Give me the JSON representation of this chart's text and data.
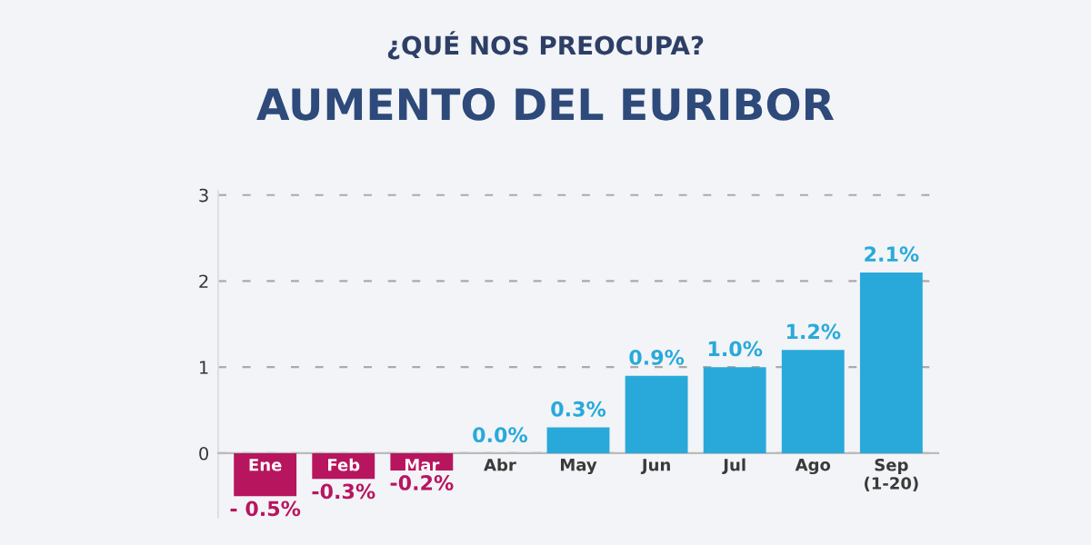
{
  "chart_data": {
    "type": "bar",
    "subtitle": "¿QUÉ NOS PREOCUPA?",
    "title": "AUMENTO DEL EURIBOR",
    "categories": [
      "Ene",
      "Feb",
      "Mar",
      "Abr",
      "May",
      "Jun",
      "Jul",
      "Ago",
      "Sep\n(1-20)"
    ],
    "values": [
      -0.5,
      -0.3,
      -0.2,
      0.0,
      0.3,
      0.9,
      1.0,
      1.2,
      2.1
    ],
    "colors": [
      "#b8155f",
      "#b8155f",
      "#b8155f",
      "#29a9da",
      "#29a9da",
      "#29a9da",
      "#29a9da",
      "#29a9da",
      "#29a9da"
    ],
    "value_labels": [
      "- 0.5%",
      "-0.3%",
      "-0.2%",
      "0.0%",
      "0.3%",
      "0.9%",
      "1.0%",
      "1.2%",
      "2.1%"
    ],
    "ylim": [
      -0.75,
      3.05
    ],
    "yticks": [
      0,
      1,
      2,
      3
    ],
    "grid": "y"
  }
}
